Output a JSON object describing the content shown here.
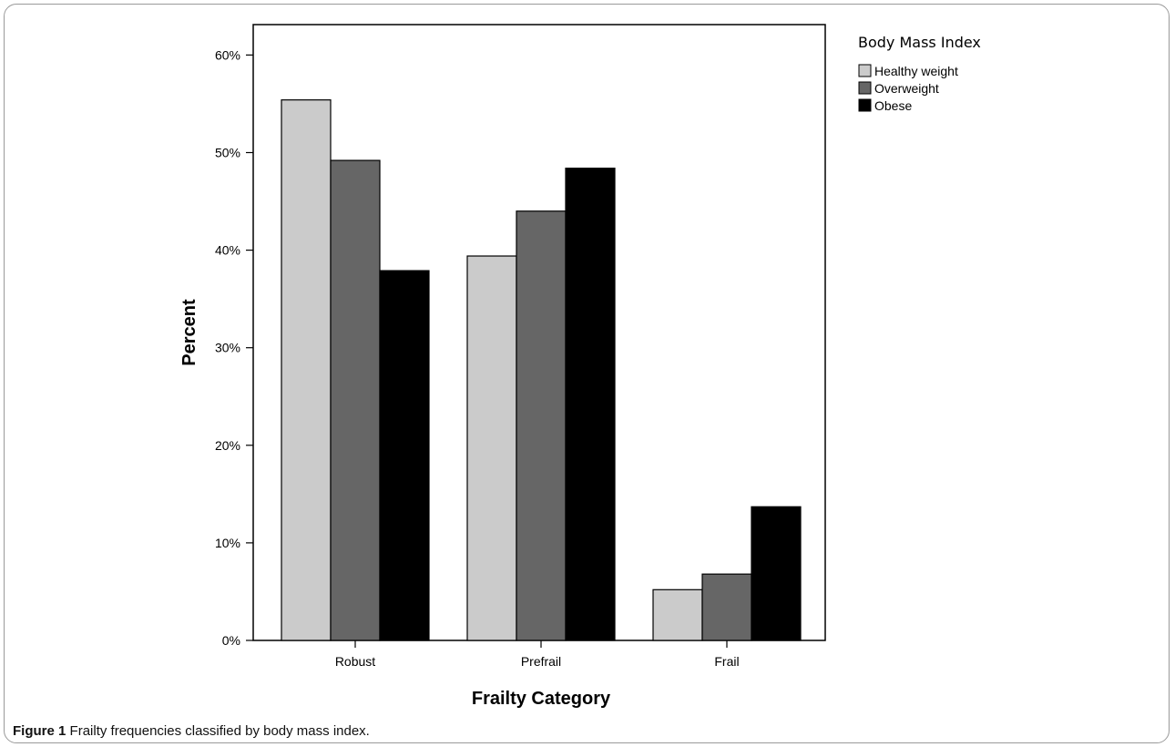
{
  "chart_data": {
    "type": "bar",
    "categories": [
      "Robust",
      "Prefrail",
      "Frail"
    ],
    "series": [
      {
        "name": "Healthy weight",
        "values": [
          55.4,
          39.4,
          5.2
        ],
        "color": "#cbcbcb"
      },
      {
        "name": "Overweight",
        "values": [
          49.2,
          44.0,
          6.8
        ],
        "color": "#666666"
      },
      {
        "name": "Obese",
        "values": [
          37.9,
          48.4,
          13.7
        ],
        "color": "#000000"
      }
    ],
    "xlabel": "Frailty Category",
    "ylabel": "Percent",
    "ylim": [
      0,
      64
    ],
    "yticks": [
      0,
      10,
      20,
      30,
      40,
      50,
      60
    ],
    "ytick_labels": [
      "0%",
      "10%",
      "20%",
      "30%",
      "40%",
      "50%",
      "60%"
    ],
    "legend_title": "Body Mass Index",
    "legend_position": "right-top",
    "grid": false
  },
  "caption": {
    "label": "Figure 1",
    "text": "Frailty frequencies classified by body mass index."
  }
}
